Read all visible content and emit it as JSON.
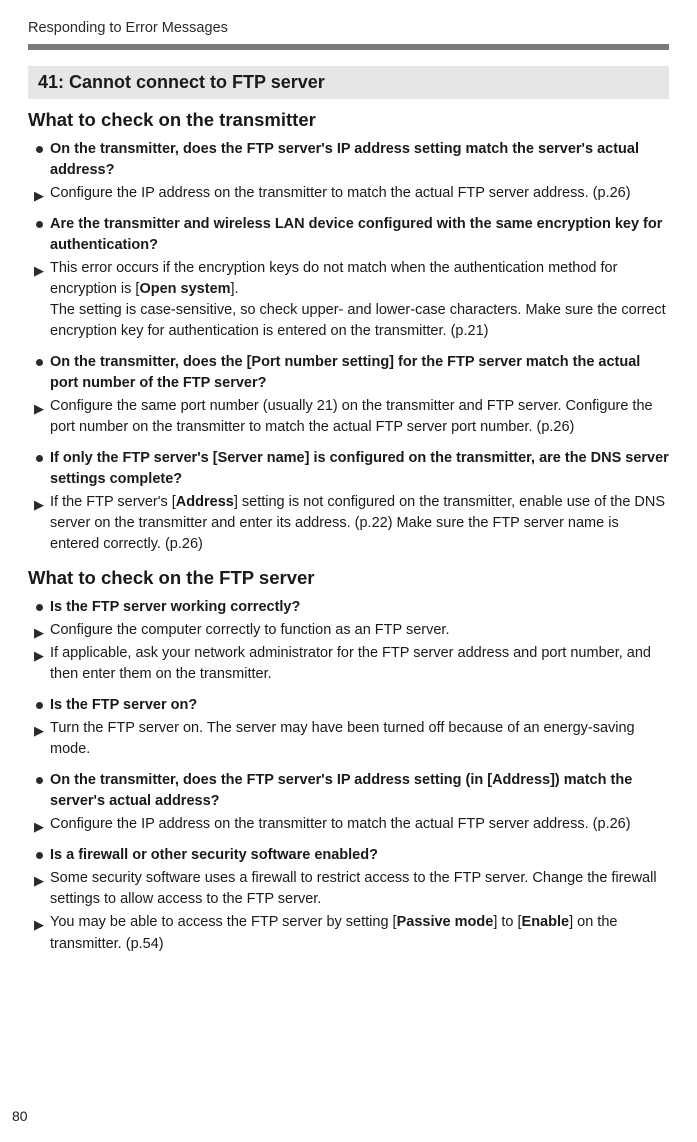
{
  "running_head": "Responding to Error Messages",
  "error": {
    "code": "41:",
    "title": "Cannot connect to FTP server"
  },
  "sections": [
    {
      "heading": "What to check on the transmitter",
      "chunks": [
        {
          "q": "On the transmitter, does the FTP server's IP address setting match the server's actual address?",
          "answers": [
            "Configure the IP address on the transmitter to match the actual FTP server address. (p.26)"
          ]
        },
        {
          "q": "Are the transmitter and wireless LAN device configured with the same encryption key for authentication?",
          "answers": [
            "This error occurs if the encryption keys do not match when the authentication method for encryption is [<b>Open system</b>].<br>The setting is case-sensitive, so check upper- and lower-case characters. Make sure the correct encryption key for authentication is entered on the transmitter. (p.21)"
          ]
        },
        {
          "q": "On the transmitter, does the [Port number setting] for the FTP server match the actual port number of the FTP server?",
          "answers": [
            "Configure the same port number (usually 21) on the transmitter and FTP server. Configure the port number on the transmitter to match the actual FTP server port number. (p.26)"
          ]
        },
        {
          "q": "If only the FTP server's [Server name] is configured on the transmitter, are the DNS server settings complete?",
          "answers": [
            "If the FTP server's [<b>Address</b>] setting is not configured on the transmitter, enable use of the DNS server on the transmitter and enter its address. (p.22) Make sure the FTP server name is entered correctly. (p.26)"
          ]
        }
      ]
    },
    {
      "heading": "What to check on the FTP server",
      "chunks": [
        {
          "q": "Is the FTP server working correctly?",
          "answers": [
            "Configure the computer correctly to function as an FTP server.",
            "If applicable, ask your network administrator for the FTP server address and port number, and then enter them on the transmitter."
          ]
        },
        {
          "q": "Is the FTP server on?",
          "answers": [
            "Turn the FTP server on. The server may have been turned off because of an energy-saving mode."
          ]
        },
        {
          "q": "On the transmitter, does the FTP server's IP address setting (in [Address]) match the server's actual address?",
          "answers": [
            "Configure the IP address on the transmitter to match the actual FTP server address. (p.26)"
          ]
        },
        {
          "q": "Is a firewall or other security software enabled?",
          "answers": [
            "Some security software uses a firewall to restrict access to the FTP server. Change the firewall settings to allow access to the FTP server.",
            "You may be able to access the FTP server by setting [<b>Passive mode</b>] to [<b>Enable</b>] on the transmitter. (p.54)"
          ]
        }
      ]
    }
  ],
  "page_number": "80"
}
